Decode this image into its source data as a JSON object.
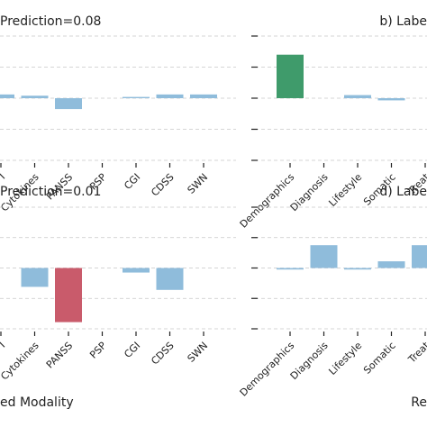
{
  "chart_data": [
    {
      "type": "bar",
      "title": "Prediction=0.08",
      "categories": [
        "I",
        "Cytokines",
        "PANSS",
        "PSP",
        "CGI",
        "CDSS",
        "SWN"
      ],
      "values": [
        0.12,
        0.08,
        -0.35,
        0,
        0.04,
        0.12,
        0.12
      ],
      "colors": [
        "#8fbcdb",
        "#8fbcdb",
        "#8fbcdb",
        "#8fbcdb",
        "#8fbcdb",
        "#8fbcdb",
        "#8fbcdb"
      ],
      "ylim": [
        -2,
        2
      ],
      "yticks": [
        -2,
        -1,
        0,
        1,
        2
      ],
      "grid": true
    },
    {
      "type": "bar",
      "title": "b) Labe",
      "categories": [
        "Demographics",
        "Diagnosis",
        "Lifestyle",
        "Somatic",
        "Treat"
      ],
      "values": [
        1.4,
        0,
        0.1,
        -0.07,
        0
      ],
      "colors": [
        "#3f9b6b",
        "#8fbcdb",
        "#8fbcdb",
        "#8fbcdb",
        "#8fbcdb"
      ],
      "ylim": [
        -2,
        2
      ],
      "yticks": [
        -2,
        -1,
        0,
        1,
        2
      ],
      "grid": true
    },
    {
      "type": "bar",
      "title": "Prediction=0.01",
      "categories": [
        "I",
        "Cytokines",
        "PANSS",
        "PSP",
        "CGI",
        "CDSS",
        "SWN"
      ],
      "values": [
        0,
        -0.62,
        -1.78,
        0,
        -0.15,
        -0.72,
        0
      ],
      "colors": [
        "#8fbcdb",
        "#8fbcdb",
        "#c95b6b",
        "#8fbcdb",
        "#8fbcdb",
        "#8fbcdb",
        "#8fbcdb"
      ],
      "ylim": [
        -2,
        2
      ],
      "yticks": [
        -2,
        -1,
        0,
        1,
        2
      ],
      "grid": true,
      "xlabel": "ed Modality"
    },
    {
      "type": "bar",
      "title": "d) Labe",
      "categories": [
        "Demographics",
        "Diagnosis",
        "Lifestyle",
        "Somatic",
        "Treat"
      ],
      "values": [
        -0.05,
        0.75,
        -0.05,
        0.22,
        0.75
      ],
      "colors": [
        "#8fbcdb",
        "#8fbcdb",
        "#8fbcdb",
        "#8fbcdb",
        "#8fbcdb"
      ],
      "ylim": [
        -2,
        2
      ],
      "yticks": [
        -2,
        -1,
        0,
        1,
        2
      ],
      "grid": true,
      "xlabel": "Re"
    }
  ]
}
